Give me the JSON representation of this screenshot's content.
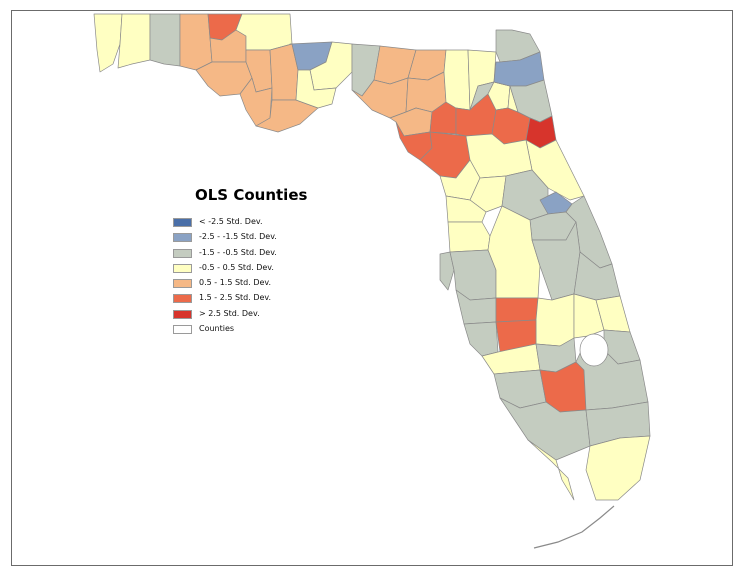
{
  "legend": {
    "title": "OLS Counties",
    "items": [
      {
        "label": "< -2.5 Std. Dev.",
        "color": "#4a6fa8"
      },
      {
        "label": "-2.5 - -1.5 Std. Dev.",
        "color": "#8aa2c4"
      },
      {
        "label": "-1.5 - -0.5 Std. Dev.",
        "color": "#c4ccc0"
      },
      {
        "label": "-0.5 - 0.5 Std. Dev.",
        "color": "#ffffc2"
      },
      {
        "label": "0.5 - 1.5 Std. Dev.",
        "color": "#f5b886"
      },
      {
        "label": "1.5 - 2.5 Std. Dev.",
        "color": "#ec6a4a"
      },
      {
        "label": "> 2.5 Std. Dev.",
        "color": "#d7342c"
      },
      {
        "label": "Counties",
        "color": "#ffffff"
      }
    ]
  },
  "colors": {
    "lt_neg_2_5": "#4a6fa8",
    "neg_2_5_to_neg_1_5": "#8aa2c4",
    "neg_1_5_to_neg_0_5": "#c4ccc0",
    "neg_0_5_to_0_5": "#ffffc2",
    "pos_0_5_to_1_5": "#f5b886",
    "pos_1_5_to_2_5": "#ec6a4a",
    "gt_2_5": "#d7342c",
    "frame_border": "#6b6b6b",
    "county_outline": "#8a8a8a"
  }
}
